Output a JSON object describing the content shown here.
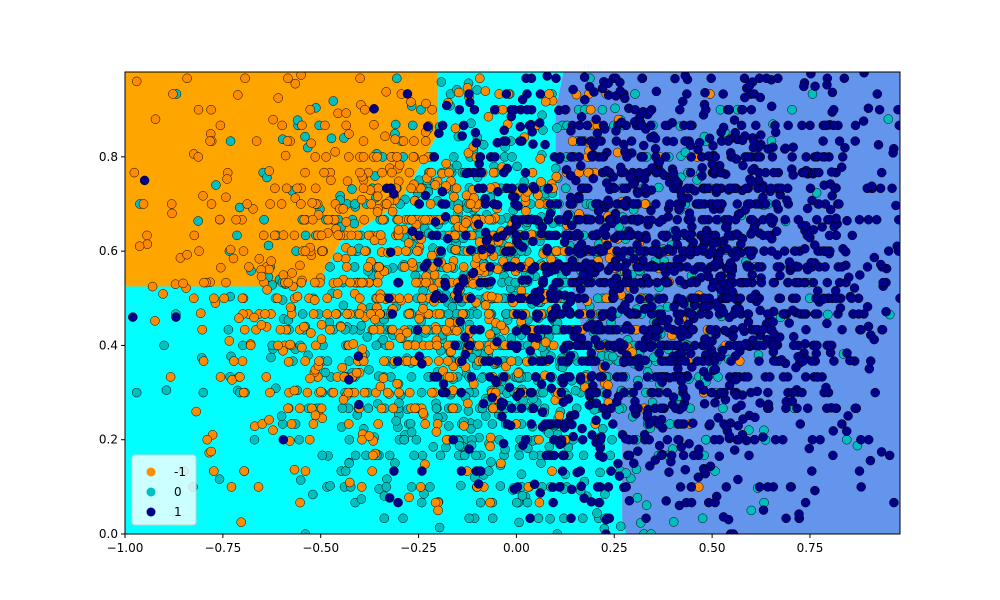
{
  "chart_data": {
    "type": "scatter",
    "title": "",
    "xlabel": "",
    "ylabel": "",
    "xlim": [
      -1.0,
      0.98
    ],
    "ylim": [
      0.0,
      0.98
    ],
    "xticks": [
      -1.0,
      -0.75,
      -0.5,
      -0.25,
      0.0,
      0.25,
      0.5,
      0.75
    ],
    "xtick_labels": [
      "−1.00",
      "−0.75",
      "−0.50",
      "−0.25",
      "0.00",
      "0.25",
      "0.50",
      "0.75"
    ],
    "yticks": [
      0.0,
      0.2,
      0.4,
      0.6,
      0.8
    ],
    "ytick_labels": [
      "0.0",
      "0.2",
      "0.4",
      "0.6",
      "0.8"
    ],
    "grid": false,
    "legend_position": "lower-left",
    "decision_regions": [
      {
        "class": "-1",
        "color": "#ffa500",
        "polygon": [
          [
            -1.0,
            0.98
          ],
          [
            -1.0,
            0.525
          ],
          [
            -0.6,
            0.525
          ],
          [
            -0.5,
            0.54
          ],
          [
            -0.45,
            0.62
          ],
          [
            -0.3,
            0.7
          ],
          [
            -0.2,
            0.85
          ],
          [
            -0.2,
            0.98
          ]
        ]
      },
      {
        "class": "0",
        "color": "#00ffff",
        "polygon": [
          [
            -1.0,
            0.525
          ],
          [
            -1.0,
            0.0
          ],
          [
            0.28,
            0.0
          ],
          [
            0.27,
            0.03
          ],
          [
            0.27,
            0.2
          ],
          [
            0.2,
            0.32
          ],
          [
            0.12,
            0.6
          ],
          [
            0.1,
            0.8
          ],
          [
            0.1,
            0.9
          ],
          [
            0.12,
            0.98
          ],
          [
            -0.2,
            0.98
          ],
          [
            -0.2,
            0.85
          ],
          [
            -0.3,
            0.7
          ],
          [
            -0.45,
            0.62
          ],
          [
            -0.5,
            0.54
          ],
          [
            -0.6,
            0.525
          ]
        ]
      },
      {
        "class": "1",
        "color": "#6495ed",
        "polygon": [
          [
            0.12,
            0.98
          ],
          [
            0.1,
            0.9
          ],
          [
            0.1,
            0.8
          ],
          [
            0.12,
            0.6
          ],
          [
            0.2,
            0.32
          ],
          [
            0.27,
            0.2
          ],
          [
            0.27,
            0.03
          ],
          [
            0.28,
            0.0
          ],
          [
            0.98,
            0.0
          ],
          [
            0.98,
            0.98
          ]
        ]
      }
    ],
    "series": [
      {
        "name": "-1",
        "color": "#ff8c00",
        "center": [
          -0.25,
          0.55
        ],
        "spread": [
          0.3,
          0.22
        ],
        "count": 900,
        "sample_points": [
          [
            -0.97,
            0.96
          ],
          [
            -0.78,
            0.9
          ],
          [
            -0.88,
            0.68
          ],
          [
            -0.6,
            0.7
          ],
          [
            -0.4,
            0.5
          ],
          [
            -0.3,
            0.3
          ],
          [
            -0.2,
            0.05
          ],
          [
            -0.15,
            0.45
          ],
          [
            -0.79,
            0.2
          ],
          [
            -0.7,
            0.5
          ]
        ]
      },
      {
        "name": "0",
        "color": "#00bfbf",
        "center": [
          -0.05,
          0.45
        ],
        "spread": [
          0.32,
          0.24
        ],
        "count": 1300,
        "sample_points": [
          [
            -0.9,
            0.4
          ],
          [
            -0.97,
            0.3
          ],
          [
            -0.6,
            0.25
          ],
          [
            -0.1,
            0.1
          ],
          [
            0.3,
            0.4
          ],
          [
            0.6,
            0.05
          ],
          [
            0.95,
            0.88
          ],
          [
            0.1,
            0.6
          ]
        ]
      },
      {
        "name": "1",
        "color": "#00008b",
        "center": [
          0.4,
          0.55
        ],
        "spread": [
          0.3,
          0.24
        ],
        "count": 2000,
        "sample_points": [
          [
            -0.98,
            0.46
          ],
          [
            -0.87,
            0.46
          ],
          [
            -0.95,
            0.75
          ],
          [
            0.5,
            0.6
          ],
          [
            0.8,
            0.4
          ],
          [
            0.9,
            0.2
          ],
          [
            0.88,
            0.2
          ],
          [
            0.6,
            0.9
          ],
          [
            0.98,
            0.5
          ],
          [
            0.3,
            0.15
          ]
        ]
      }
    ]
  }
}
